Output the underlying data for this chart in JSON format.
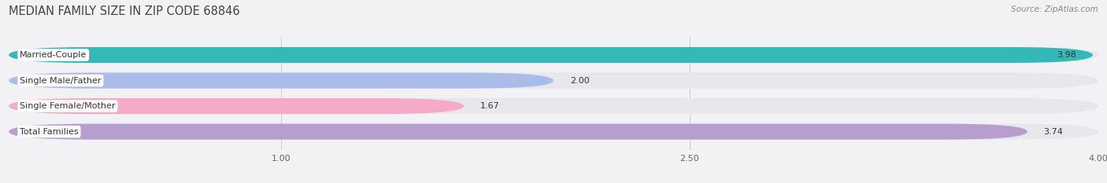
{
  "title": "MEDIAN FAMILY SIZE IN ZIP CODE 68846",
  "source": "Source: ZipAtlas.com",
  "categories": [
    "Married-Couple",
    "Single Male/Father",
    "Single Female/Mother",
    "Total Families"
  ],
  "values": [
    3.98,
    2.0,
    1.67,
    3.74
  ],
  "bar_colors": [
    "#35b8b8",
    "#aabde8",
    "#f4aac8",
    "#b89ece"
  ],
  "track_color": "#e8e8ec",
  "xlim_max": 4.0,
  "xticks": [
    1.0,
    2.5,
    4.0
  ],
  "background_color": "#f2f2f4",
  "bar_height": 0.62,
  "bar_gap": 1.0,
  "title_fontsize": 10.5,
  "label_fontsize": 8.0,
  "value_fontsize": 8.0,
  "source_fontsize": 7.5,
  "tick_fontsize": 8.0
}
